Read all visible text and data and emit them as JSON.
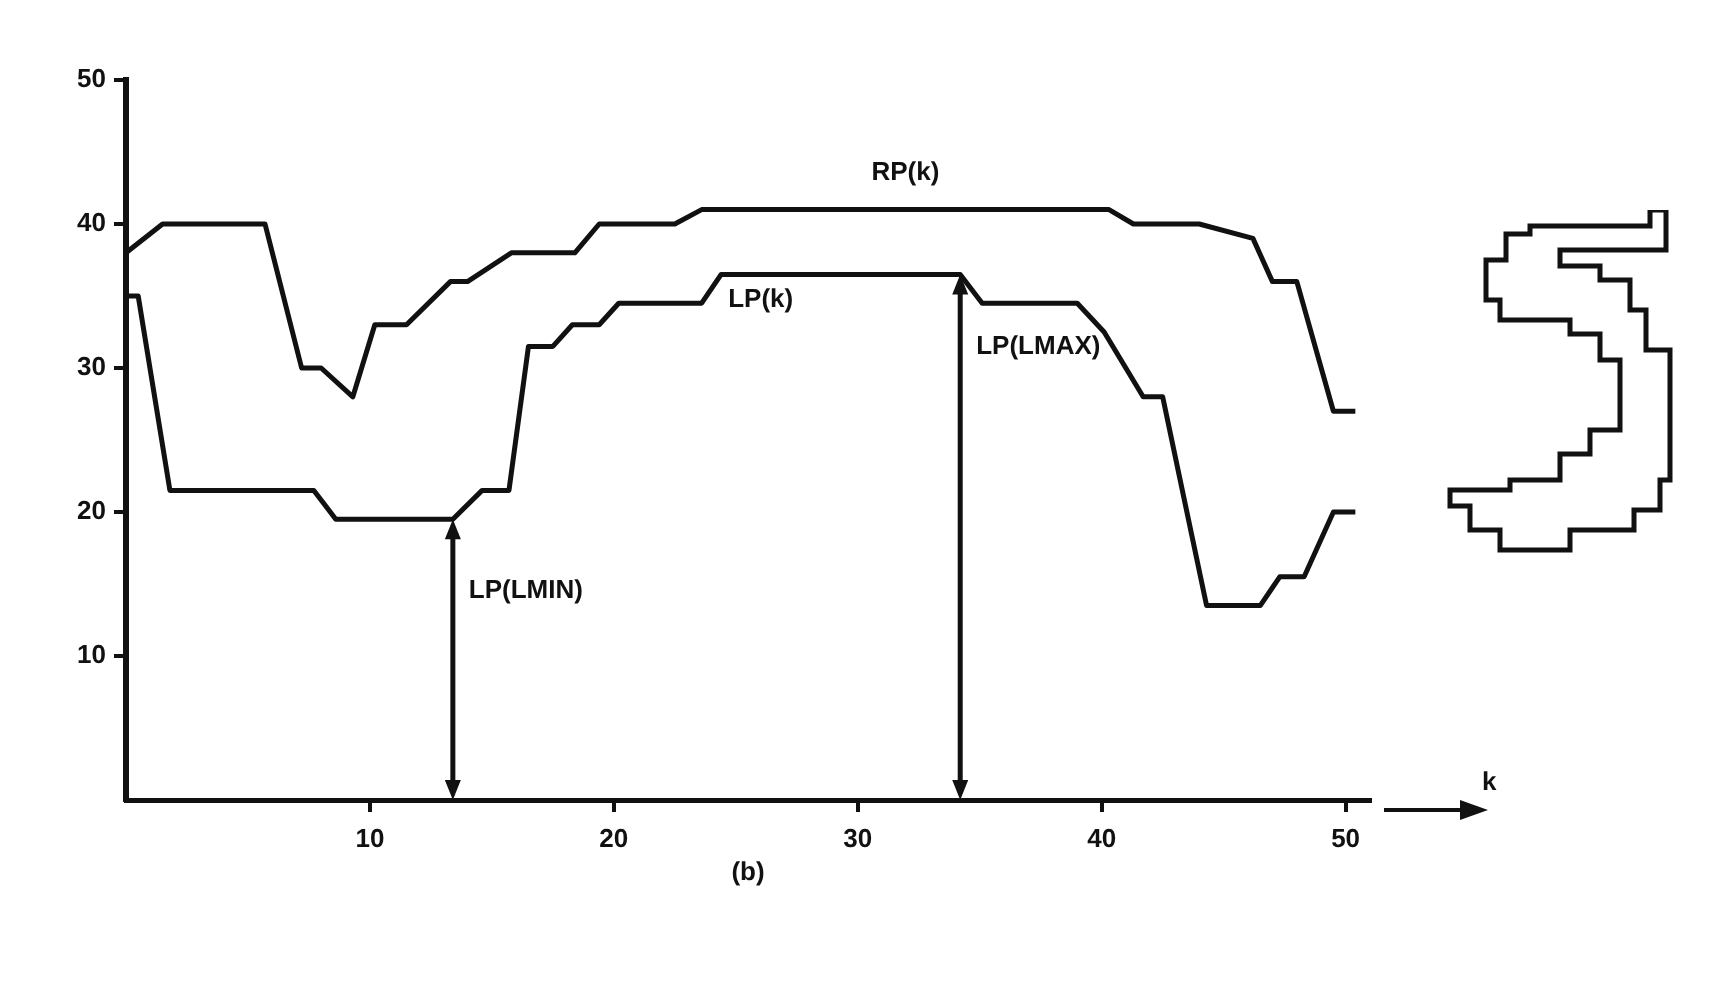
{
  "chart_data": {
    "type": "line",
    "xlabel": "k",
    "xlim": [
      0,
      51
    ],
    "ylim": [
      0,
      50
    ],
    "xticks": [
      10,
      20,
      30,
      40,
      50
    ],
    "yticks": [
      10,
      20,
      30,
      40,
      50
    ],
    "grid": false,
    "legend": false,
    "marker": "none",
    "line_style": "solid",
    "series": [
      {
        "name": "RP(k)",
        "color": "#111111",
        "x": [
          0,
          1.5,
          5.7,
          7.2,
          8,
          9.3,
          10.2,
          11.5,
          13.3,
          14,
          15.8,
          18.4,
          19.4,
          22.5,
          23.6,
          40.3,
          41.3,
          44,
          46.2,
          47,
          48,
          49.5,
          50.4
        ],
        "values": [
          38,
          40,
          40,
          30,
          30,
          28,
          33,
          33,
          36,
          36,
          38,
          38,
          40,
          40,
          41,
          41,
          40,
          40,
          39,
          36,
          36,
          27,
          27
        ]
      },
      {
        "name": "LP(k)",
        "color": "#111111",
        "x": [
          0,
          0.5,
          1.8,
          7.7,
          8.6,
          13.4,
          14.6,
          15.7,
          16.5,
          17.5,
          18.3,
          19.4,
          20.2,
          23.6,
          24.4,
          34.2,
          35.1,
          39,
          40.1,
          41.7,
          42.5,
          44.3,
          46.5,
          47.3,
          48.3,
          49.5,
          50.4
        ],
        "values": [
          35,
          35,
          21.5,
          21.5,
          19.5,
          19.5,
          21.5,
          21.5,
          31.5,
          31.5,
          33,
          33,
          34.5,
          34.5,
          36.5,
          36.5,
          34.5,
          34.5,
          32.5,
          28,
          28,
          13.5,
          13.5,
          15.5,
          15.5,
          20,
          20
        ]
      }
    ],
    "annotations": [
      {
        "text": "LP(LMIN)",
        "x": 13.4,
        "y": 19.5
      },
      {
        "text": "LP(LMAX)",
        "x": 34.2,
        "y": 36.5
      },
      "(b)"
    ]
  }
}
